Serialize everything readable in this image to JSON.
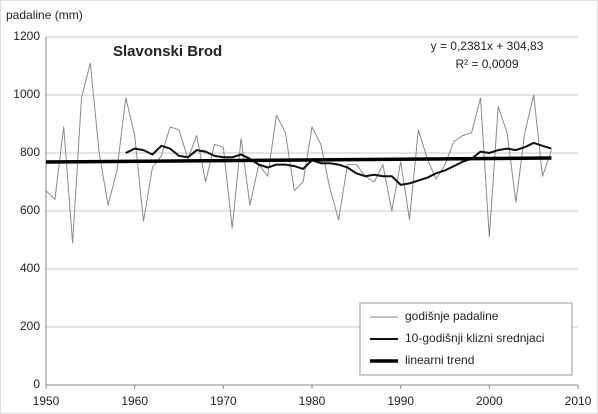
{
  "chart_data": {
    "type": "line",
    "title": "Slavonski Brod",
    "y_label": "padaline (mm)",
    "annotations": [
      "y = 0,2381x + 304,83",
      "R² = 0,0009"
    ],
    "x": [
      1950,
      1951,
      1952,
      1953,
      1954,
      1955,
      1956,
      1957,
      1958,
      1959,
      1960,
      1961,
      1962,
      1963,
      1964,
      1965,
      1966,
      1967,
      1968,
      1969,
      1970,
      1971,
      1972,
      1973,
      1974,
      1975,
      1976,
      1977,
      1978,
      1979,
      1980,
      1981,
      1982,
      1983,
      1984,
      1985,
      1986,
      1987,
      1988,
      1989,
      1990,
      1991,
      1992,
      1993,
      1994,
      1995,
      1996,
      1997,
      1998,
      1999,
      2000,
      2001,
      2002,
      2003,
      2004,
      2005,
      2006,
      2007
    ],
    "series": [
      {
        "name": "godišnje padaline",
        "color": "#8a8a8a",
        "width": 1,
        "values": [
          670,
          640,
          890,
          490,
          990,
          1110,
          800,
          620,
          740,
          990,
          860,
          565,
          750,
          790,
          890,
          880,
          780,
          860,
          700,
          830,
          820,
          540,
          850,
          620,
          760,
          720,
          930,
          870,
          670,
          700,
          890,
          830,
          680,
          570,
          760,
          760,
          720,
          700,
          760,
          600,
          770,
          570,
          880,
          780,
          710,
          760,
          840,
          860,
          870,
          990,
          510,
          960,
          870,
          630,
          870,
          1000,
          720,
          810
        ]
      },
      {
        "name": "10-godišnji klizni srednjaci",
        "color": "#111111",
        "width": 2,
        "values": [
          null,
          null,
          null,
          null,
          null,
          null,
          null,
          null,
          null,
          800,
          815,
          810,
          795,
          825,
          815,
          790,
          785,
          810,
          805,
          790,
          785,
          785,
          795,
          780,
          760,
          750,
          760,
          760,
          755,
          745,
          775,
          765,
          765,
          760,
          750,
          730,
          720,
          725,
          720,
          720,
          690,
          695,
          705,
          715,
          730,
          740,
          755,
          770,
          780,
          805,
          800,
          810,
          815,
          810,
          820,
          835,
          825,
          815
        ]
      },
      {
        "name": "linearni trend",
        "color": "#000000",
        "width": 3.5,
        "x": [
          1950,
          2007
        ],
        "values": [
          769.1,
          782.7
        ]
      }
    ],
    "xlim": [
      1950,
      2010
    ],
    "xticks": [
      1950,
      1960,
      1970,
      1980,
      1990,
      2000,
      2010
    ],
    "ylim": [
      0,
      1200
    ],
    "yticks": [
      0,
      200,
      400,
      600,
      800,
      1000,
      1200
    ],
    "grid": true,
    "legend": "bottom-right"
  }
}
